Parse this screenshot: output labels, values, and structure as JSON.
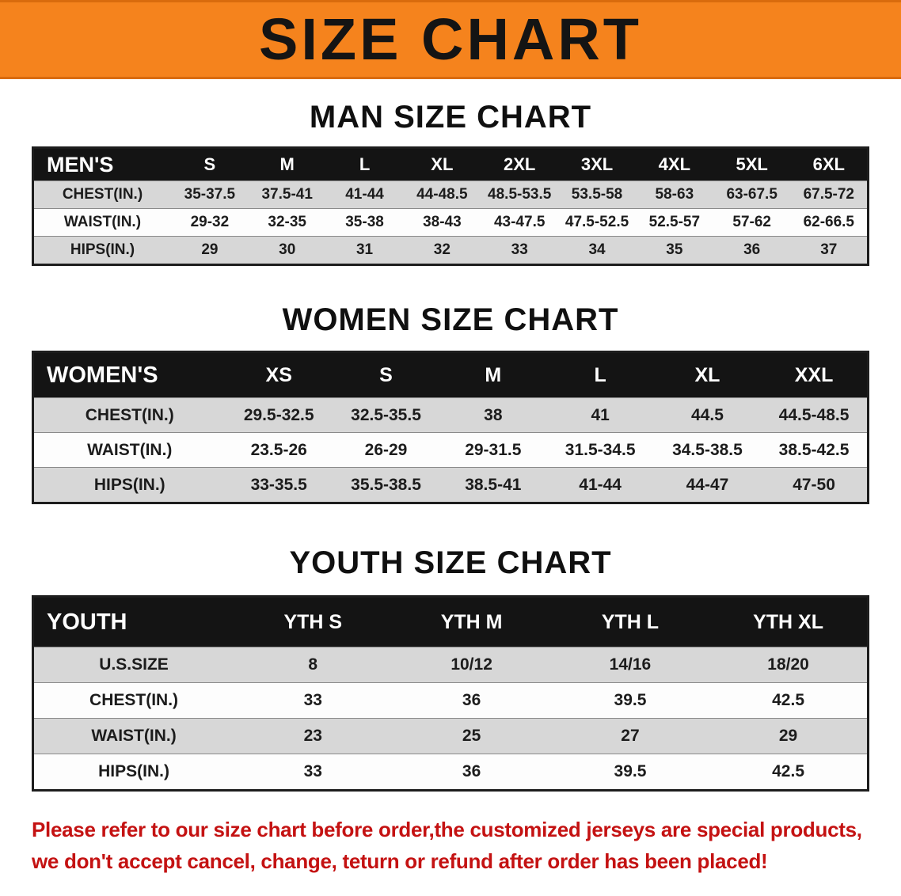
{
  "banner": {
    "title": "SIZE CHART",
    "bg_color": "#F5831D",
    "text_color": "#141414"
  },
  "colors": {
    "table_header_bg": "#141414",
    "row_gray": "#D7D7D7",
    "row_white": "#FDFDFD",
    "disclaimer_red": "#C41212"
  },
  "sections": [
    {
      "heading": "MAN SIZE CHART",
      "table": {
        "corner": "MEN'S",
        "columns": [
          "S",
          "M",
          "L",
          "XL",
          "2XL",
          "3XL",
          "4XL",
          "5XL",
          "6XL"
        ],
        "rows": [
          {
            "label": "CHEST(IN.)",
            "values": [
              "35-37.5",
              "37.5-41",
              "41-44",
              "44-48.5",
              "48.5-53.5",
              "53.5-58",
              "58-63",
              "63-67.5",
              "67.5-72"
            ]
          },
          {
            "label": "WAIST(IN.)",
            "values": [
              "29-32",
              "32-35",
              "35-38",
              "38-43",
              "43-47.5",
              "47.5-52.5",
              "52.5-57",
              "57-62",
              "62-66.5"
            ]
          },
          {
            "label": "HIPS(IN.)",
            "values": [
              "29",
              "30",
              "31",
              "32",
              "33",
              "34",
              "35",
              "36",
              "37"
            ]
          }
        ]
      }
    },
    {
      "heading": "WOMEN SIZE CHART",
      "table": {
        "corner": "WOMEN'S",
        "columns": [
          "XS",
          "S",
          "M",
          "L",
          "XL",
          "XXL"
        ],
        "rows": [
          {
            "label": "CHEST(IN.)",
            "values": [
              "29.5-32.5",
              "32.5-35.5",
              "38",
              "41",
              "44.5",
              "44.5-48.5"
            ]
          },
          {
            "label": "WAIST(IN.)",
            "values": [
              "23.5-26",
              "26-29",
              "29-31.5",
              "31.5-34.5",
              "34.5-38.5",
              "38.5-42.5"
            ]
          },
          {
            "label": "HIPS(IN.)",
            "values": [
              "33-35.5",
              "35.5-38.5",
              "38.5-41",
              "41-44",
              "44-47",
              "47-50"
            ]
          }
        ]
      }
    },
    {
      "heading": "YOUTH SIZE CHART",
      "table": {
        "corner": "YOUTH",
        "columns": [
          "YTH S",
          "YTH M",
          "YTH L",
          "YTH XL"
        ],
        "rows": [
          {
            "label": "U.S.SIZE",
            "values": [
              "8",
              "10/12",
              "14/16",
              "18/20"
            ]
          },
          {
            "label": "CHEST(IN.)",
            "values": [
              "33",
              "36",
              "39.5",
              "42.5"
            ]
          },
          {
            "label": "WAIST(IN.)",
            "values": [
              "23",
              "25",
              "27",
              "29"
            ]
          },
          {
            "label": "HIPS(IN.)",
            "values": [
              "33",
              "36",
              "39.5",
              "42.5"
            ]
          }
        ]
      }
    }
  ],
  "footer": {
    "line1": "Please refer to our size chart before order,the customized jerseys are special products,",
    "line2": "we don't accept cancel, change, teturn or refund after order has been placed!"
  }
}
